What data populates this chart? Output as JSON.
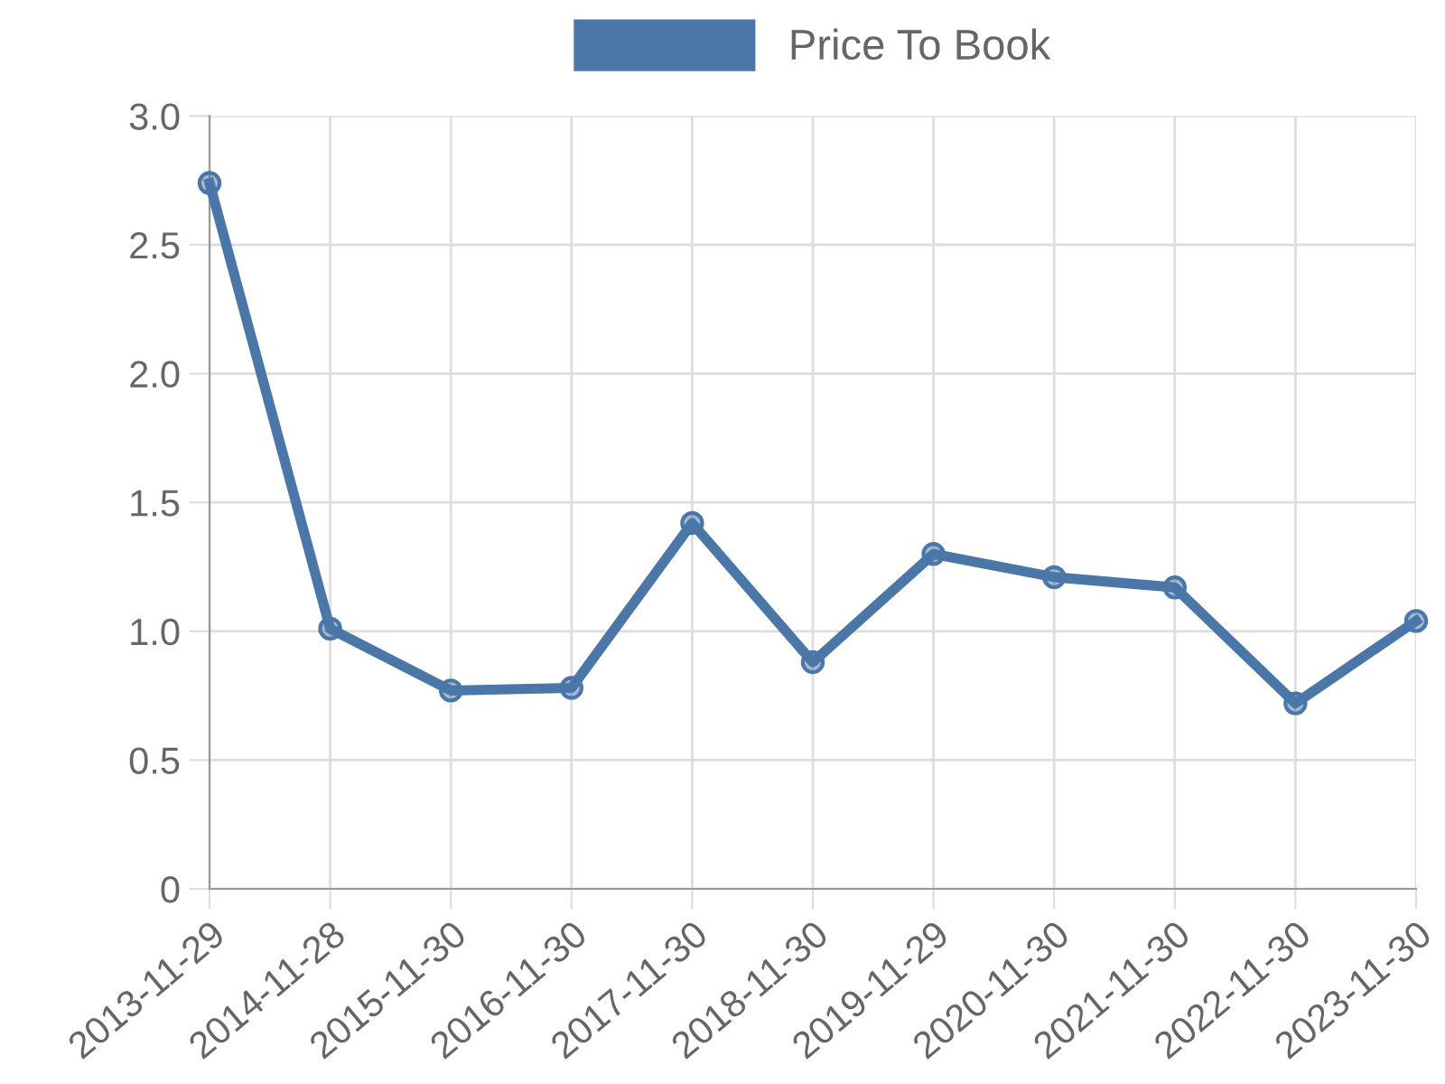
{
  "chart_data": {
    "type": "line",
    "categories": [
      "2013-11-29",
      "2014-11-28",
      "2015-11-30",
      "2016-11-30",
      "2017-11-30",
      "2018-11-30",
      "2019-11-29",
      "2020-11-30",
      "2021-11-30",
      "2022-11-30",
      "2023-11-30"
    ],
    "series": [
      {
        "name": "Price To Book",
        "color": "#4a76a8",
        "values": [
          2.74,
          1.01,
          0.77,
          0.78,
          1.42,
          0.88,
          1.3,
          1.21,
          1.17,
          0.72,
          1.04
        ]
      }
    ],
    "ylim": [
      0,
      3
    ],
    "yticks": [
      0,
      {
        "value": 0.5,
        "label": "0.5"
      },
      {
        "value": 1,
        "label": "1.0"
      },
      {
        "value": 1.5,
        "label": "1.5"
      },
      {
        "value": 2,
        "label": "2.0"
      },
      {
        "value": 2.5,
        "label": "2.5"
      },
      {
        "value": 3,
        "label": "3.0"
      }
    ],
    "grid": true,
    "legend": "top",
    "marker": "circle",
    "line_style": "solid"
  }
}
